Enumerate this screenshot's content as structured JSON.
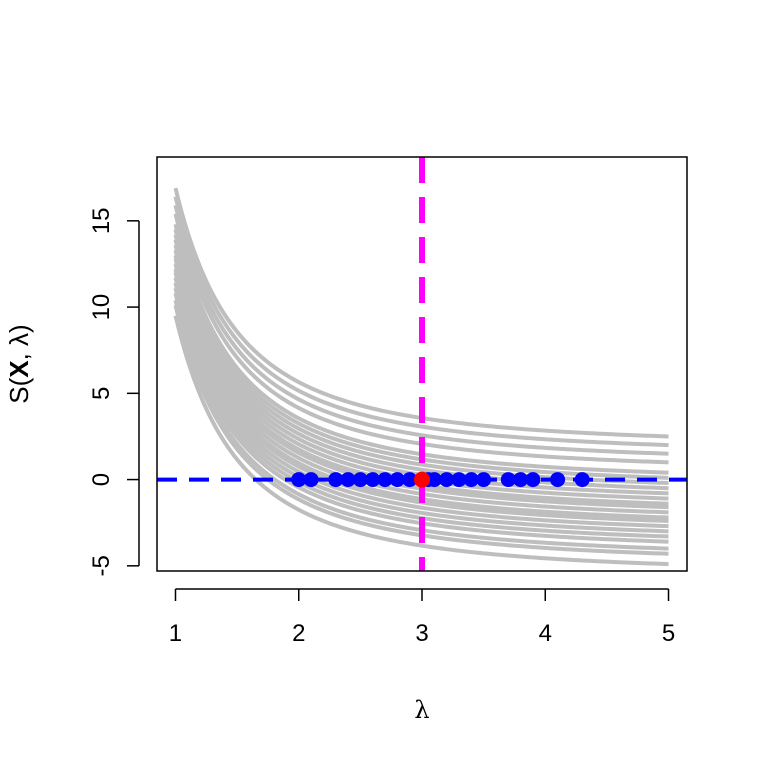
{
  "chart_data": {
    "type": "line",
    "xlabel": "λ",
    "ylabel": {
      "prefix": "S(",
      "bold": "X",
      "suffix": ", λ)"
    },
    "xlim": [
      0.85,
      5.15
    ],
    "ylim": [
      -5.3,
      18.7
    ],
    "x_ticks": [
      "1",
      "2",
      "3",
      "4",
      "5"
    ],
    "y_ticks": [
      "-5",
      "0",
      "5",
      "10",
      "15"
    ],
    "curve_color": "#bebebe",
    "reference_line": {
      "y": 0,
      "color": "#0000ff",
      "style": "dashed"
    },
    "true_value_line": {
      "x": 3,
      "color": "#ff00ff",
      "style": "dashed"
    },
    "gray_curves": {
      "description_of_family": "score functions",
      "offsets": [
        -5.5,
        -4.9,
        -4.6,
        -4.2,
        -3.9,
        -3.6,
        -3.3,
        -3.0,
        -2.8,
        -2.5,
        -2.2,
        -2.0,
        -1.7,
        -1.4,
        -1.1,
        -0.8,
        -0.5,
        -0.2,
        0.4,
        0.9,
        1.4,
        1.9
      ],
      "scale": 15,
      "x_range": [
        1,
        5
      ]
    },
    "roots": {
      "color": "#0000ff",
      "x": [
        2.0,
        2.1,
        2.3,
        2.4,
        2.5,
        2.6,
        2.7,
        2.8,
        2.9,
        3.0,
        3.05,
        3.1,
        3.2,
        3.3,
        3.4,
        3.5,
        3.7,
        3.8,
        3.9,
        4.1,
        4.3
      ],
      "y": 0
    },
    "truth_point": {
      "x": 3.0,
      "y": 0,
      "color": "#ff0000"
    }
  }
}
